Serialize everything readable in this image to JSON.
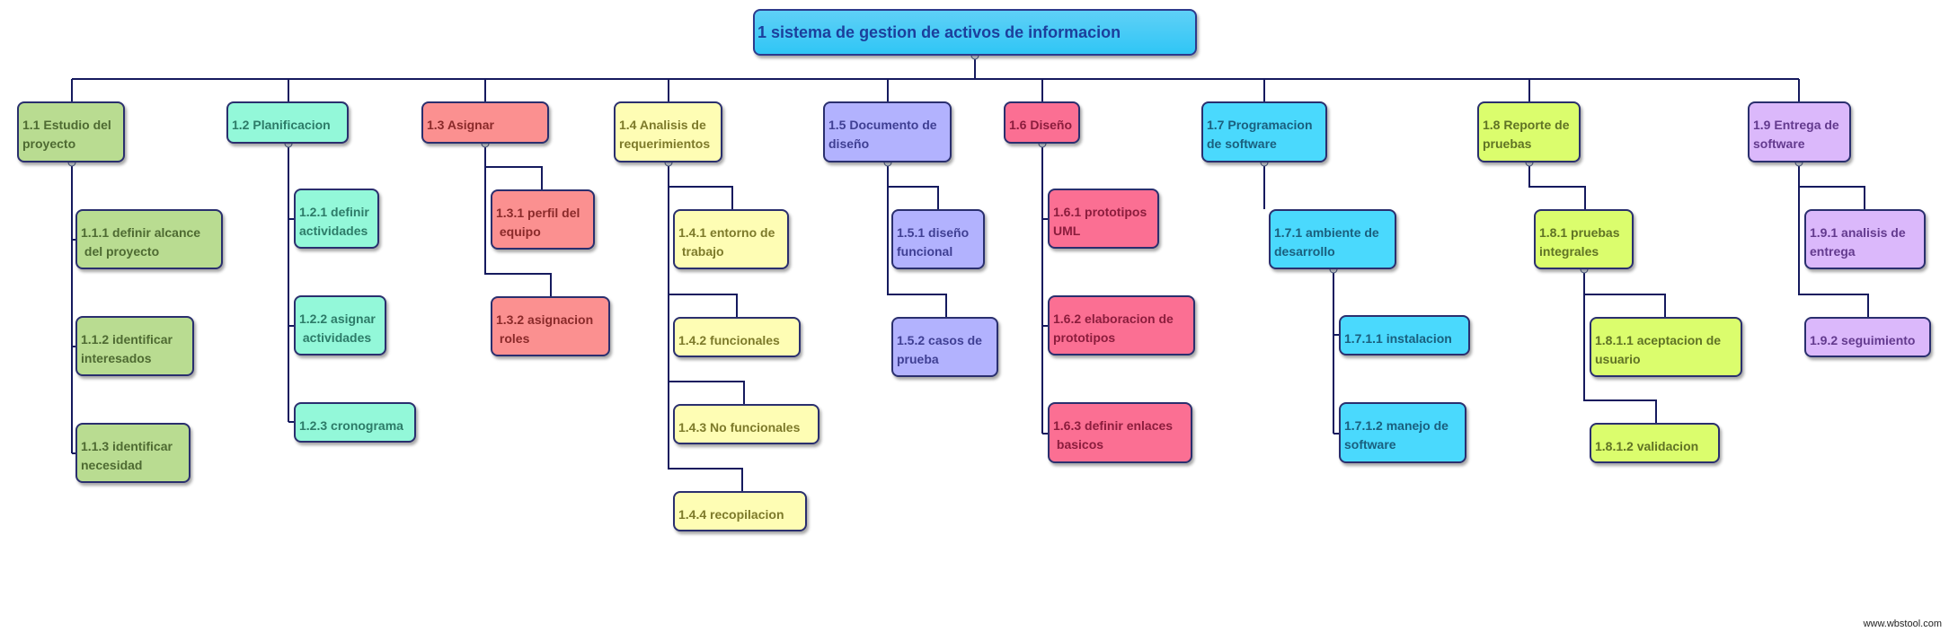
{
  "diagram": {
    "root": {
      "label": "1 sistema de gestion de activos de informacion"
    },
    "branches": [
      {
        "label": "1.1 Estudio del\nproyecto",
        "color": "#b9dc91",
        "children": [
          {
            "label": "1.1.1 definir alcance\n del proyecto"
          },
          {
            "label": "1.1.2 identificar\ninteresados"
          },
          {
            "label": "1.1.3 identificar\nnecesidad"
          }
        ]
      },
      {
        "label": "1.2 Planificacion",
        "color": "#93f8d9",
        "children": [
          {
            "label": "1.2.1 definir\nactividades"
          },
          {
            "label": "1.2.2 asignar\n actividades"
          },
          {
            "label": "1.2.3 cronograma"
          }
        ]
      },
      {
        "label": "1.3 Asignar",
        "color": "#fb9090",
        "children": [
          {
            "label": "1.3.1 perfil del\n equipo"
          },
          {
            "label": "1.3.2 asignacion\n roles"
          }
        ]
      },
      {
        "label": "1.4 Analisis de\nrequerimientos",
        "color": "#fefdb4",
        "children": [
          {
            "label": "1.4.1 entorno de\n trabajo"
          },
          {
            "label": "1.4.2 funcionales"
          },
          {
            "label": "1.4.3 No funcionales"
          },
          {
            "label": "1.4.4 recopilacion"
          }
        ]
      },
      {
        "label": "1.5 Documento de\ndiseño",
        "color": "#b2b2fe",
        "children": [
          {
            "label": "1.5.1 diseño\nfuncional"
          },
          {
            "label": "1.5.2 casos de\nprueba"
          }
        ]
      },
      {
        "label": "1.6 Diseño",
        "color": "#fb6f93",
        "children": [
          {
            "label": "1.6.1 prototipos\nUML"
          },
          {
            "label": "1.6.2 elaboracion de\nprototipos"
          },
          {
            "label": "1.6.3 definir enlaces\n basicos"
          }
        ]
      },
      {
        "label": "1.7 Programacion\nde software",
        "color": "#4ad9fd",
        "children": [
          {
            "label": "1.7.1 ambiente de\ndesarrollo",
            "children": [
              {
                "label": "1.7.1.1 instalacion"
              },
              {
                "label": "1.7.1.2 manejo de\nsoftware"
              }
            ]
          }
        ]
      },
      {
        "label": "1.8 Reporte de\npruebas",
        "color": "#dbfd6d",
        "children": [
          {
            "label": "1.8.1 pruebas\nintegrales",
            "children": [
              {
                "label": "1.8.1.1 aceptacion de\nusuario"
              },
              {
                "label": "1.8.1.2 validacion"
              }
            ]
          }
        ]
      },
      {
        "label": "1.9 Entrega de\nsoftware",
        "color": "#dbb8fb",
        "children": [
          {
            "label": "1.9.1 analisis de\nentrega"
          },
          {
            "label": "1.9.2 seguimiento"
          }
        ]
      }
    ]
  },
  "footer": {
    "text": "www.wbstool.com"
  }
}
